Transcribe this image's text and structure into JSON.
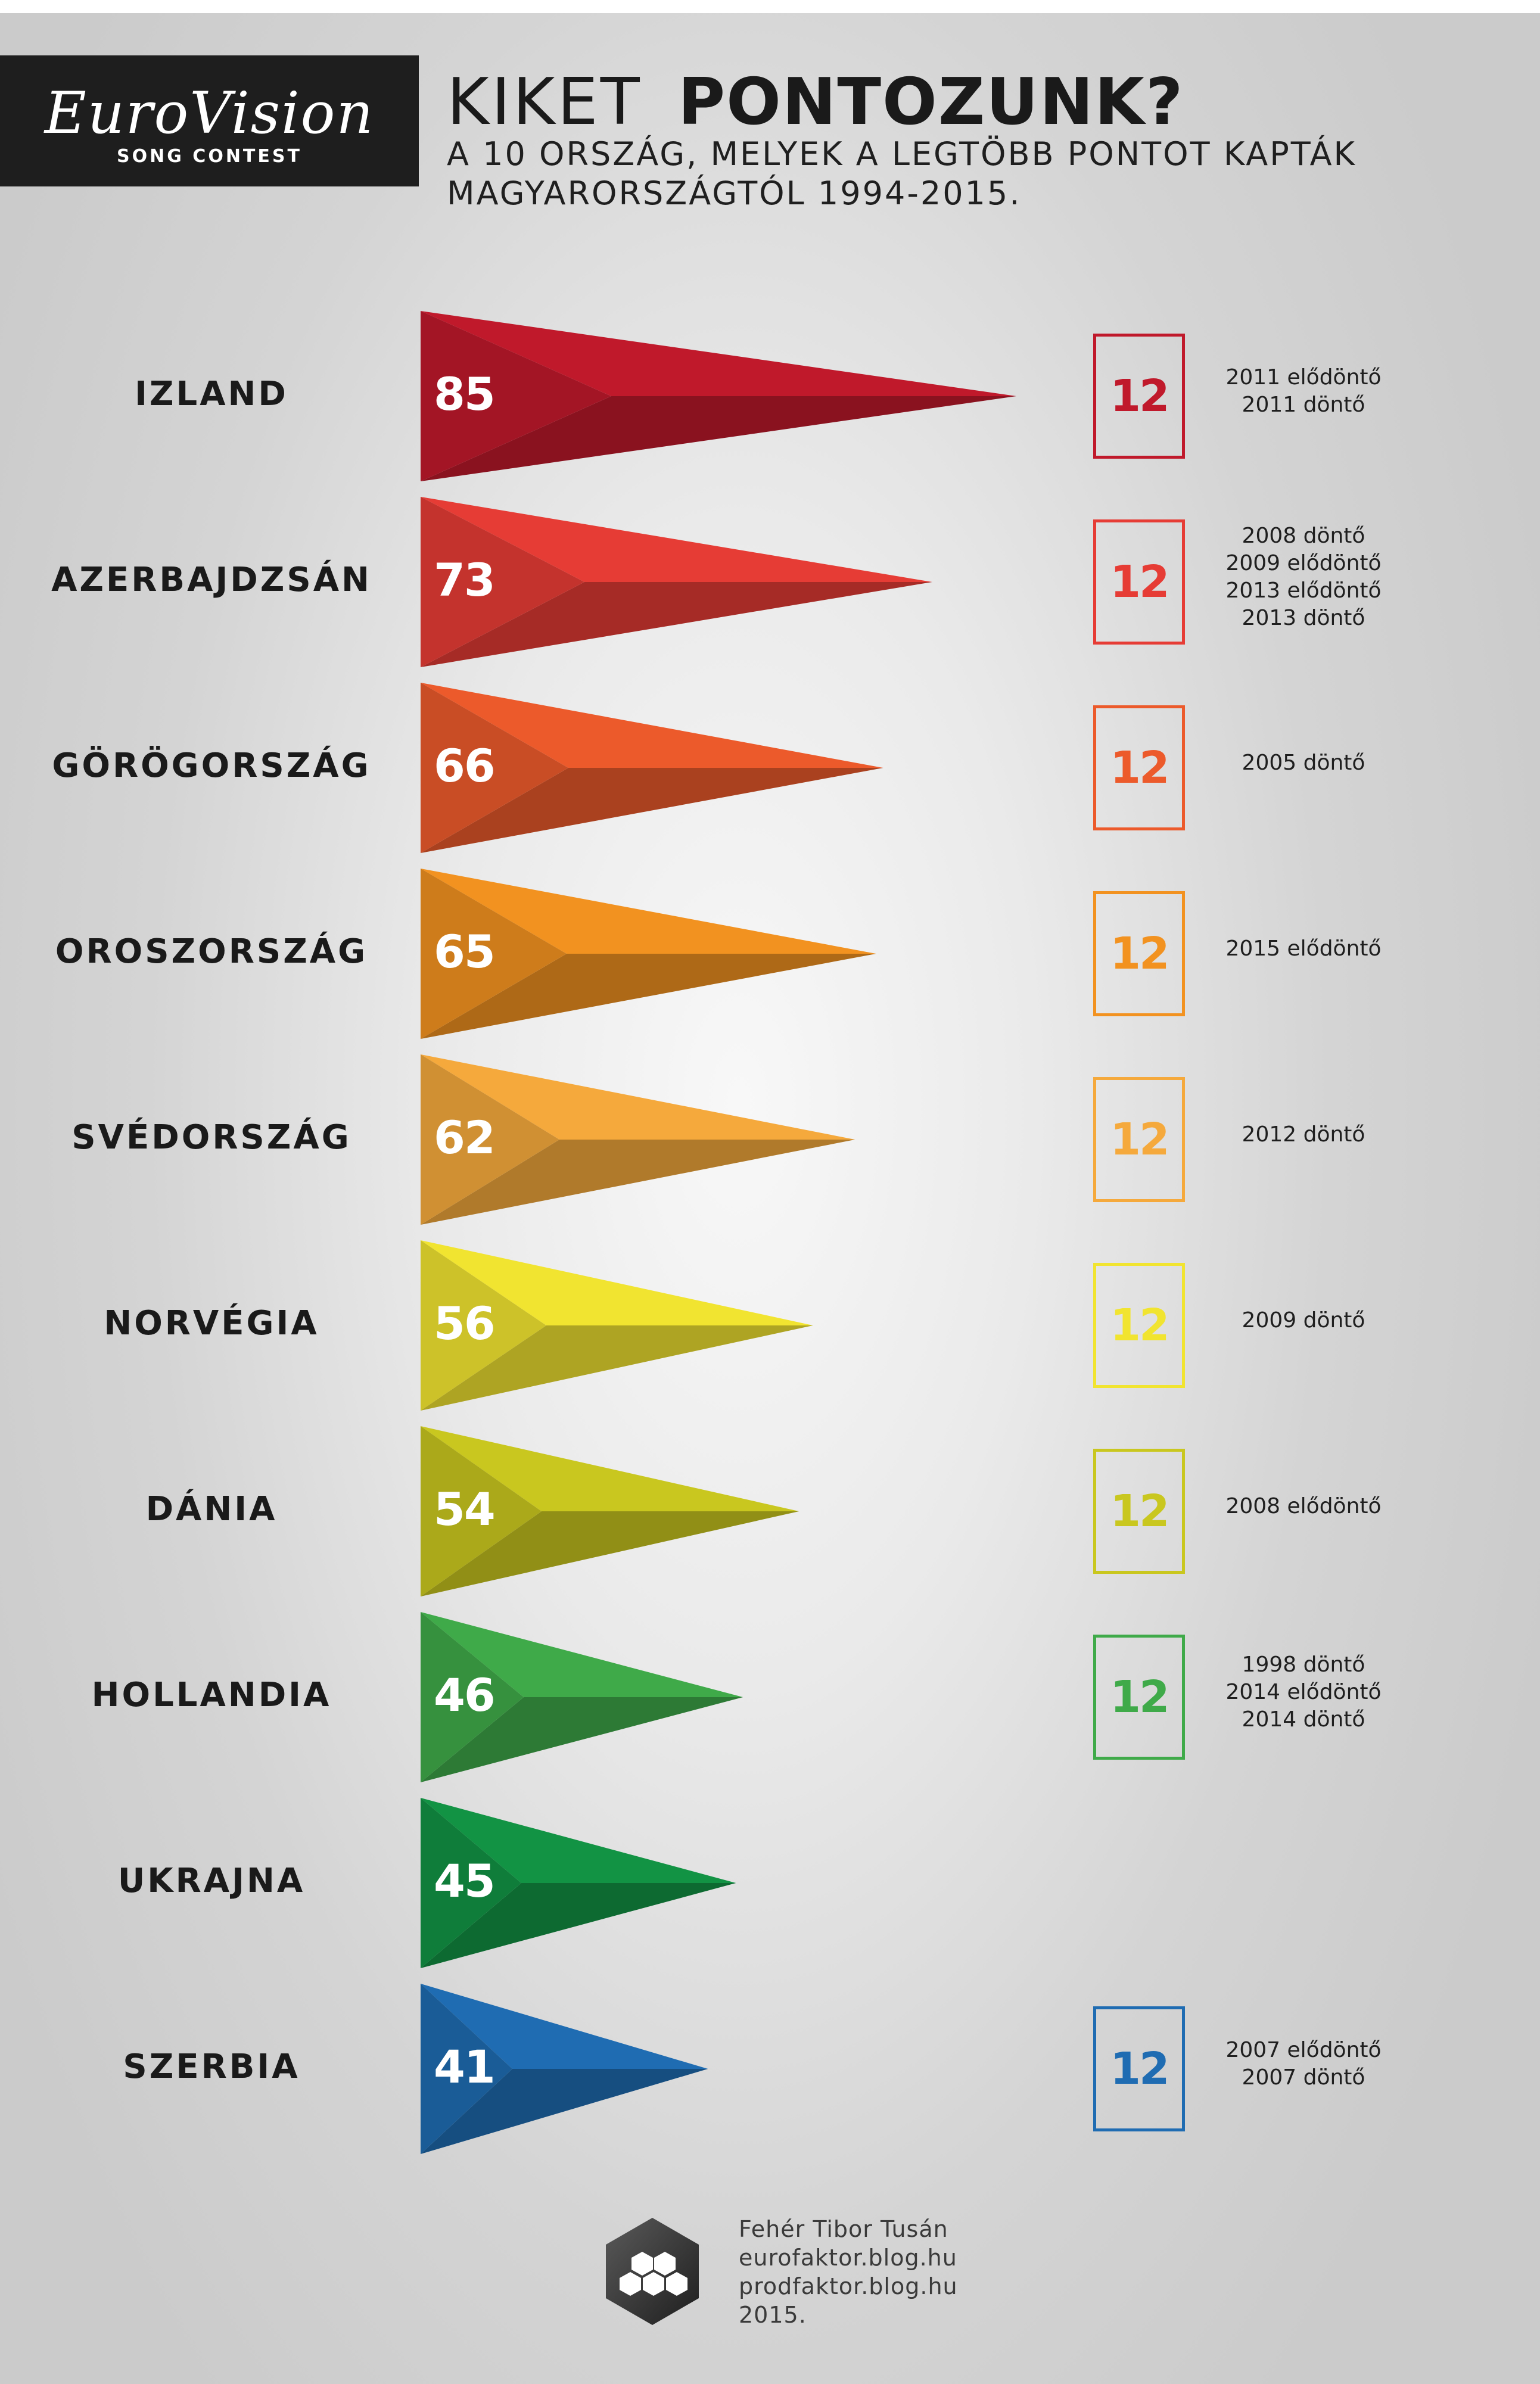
{
  "header": {
    "logo_text": "EuroVision",
    "logo_sub": "SONG CONTEST",
    "title_light": "KIKET",
    "title_bold": "PONTOZUNK?",
    "subtitle_line1": "A 10 ORSZÁG, MELYEK A LEGTÖBB PONTOT KAPTÁK",
    "subtitle_line2": "MAGYARORSZÁGTÓL 1994-2015."
  },
  "chart_data": {
    "type": "bar",
    "categories": [
      "IZLAND",
      "AZERBAJDZSÁN",
      "GÖRÖGORSZÁG",
      "OROSZORSZÁG",
      "SVÉDORSZÁG",
      "NORVÉGIA",
      "DÁNIA",
      "HOLLANDIA",
      "UKRAJNA",
      "SZERBIA"
    ],
    "values": [
      85,
      73,
      66,
      65,
      62,
      56,
      54,
      46,
      45,
      41
    ],
    "colors": [
      "#c0192b",
      "#e63c35",
      "#ec5a2b",
      "#f29220",
      "#f5a93c",
      "#f1e430",
      "#c9c71f",
      "#3faa49",
      "#129344",
      "#1f6cb2"
    ],
    "twelve_points": [
      {
        "label": "12",
        "events": [
          "2011 elődöntő",
          "2011 döntő"
        ]
      },
      {
        "label": "12",
        "events": [
          "2008 döntő",
          "2009 elődöntő",
          "2013 elődöntő",
          "2013 döntő"
        ]
      },
      {
        "label": "12",
        "events": [
          "2005 döntő"
        ]
      },
      {
        "label": "12",
        "events": [
          "2015 elődöntő"
        ]
      },
      {
        "label": "12",
        "events": [
          "2012 döntő"
        ]
      },
      {
        "label": "12",
        "events": [
          "2009 döntő"
        ]
      },
      {
        "label": "12",
        "events": [
          "2008 elődöntő"
        ]
      },
      {
        "label": "12",
        "events": [
          "1998 döntő",
          "2014 elődöntő",
          "2014 döntő"
        ]
      },
      null,
      {
        "label": "12",
        "events": [
          "2007 elődöntő",
          "2007 döntő"
        ]
      }
    ]
  },
  "footer": {
    "line1": "Fehér Tibor Tusán",
    "line2": "eurofaktor.blog.hu",
    "line3": "prodfaktor.blog.hu",
    "line4": "2015."
  }
}
